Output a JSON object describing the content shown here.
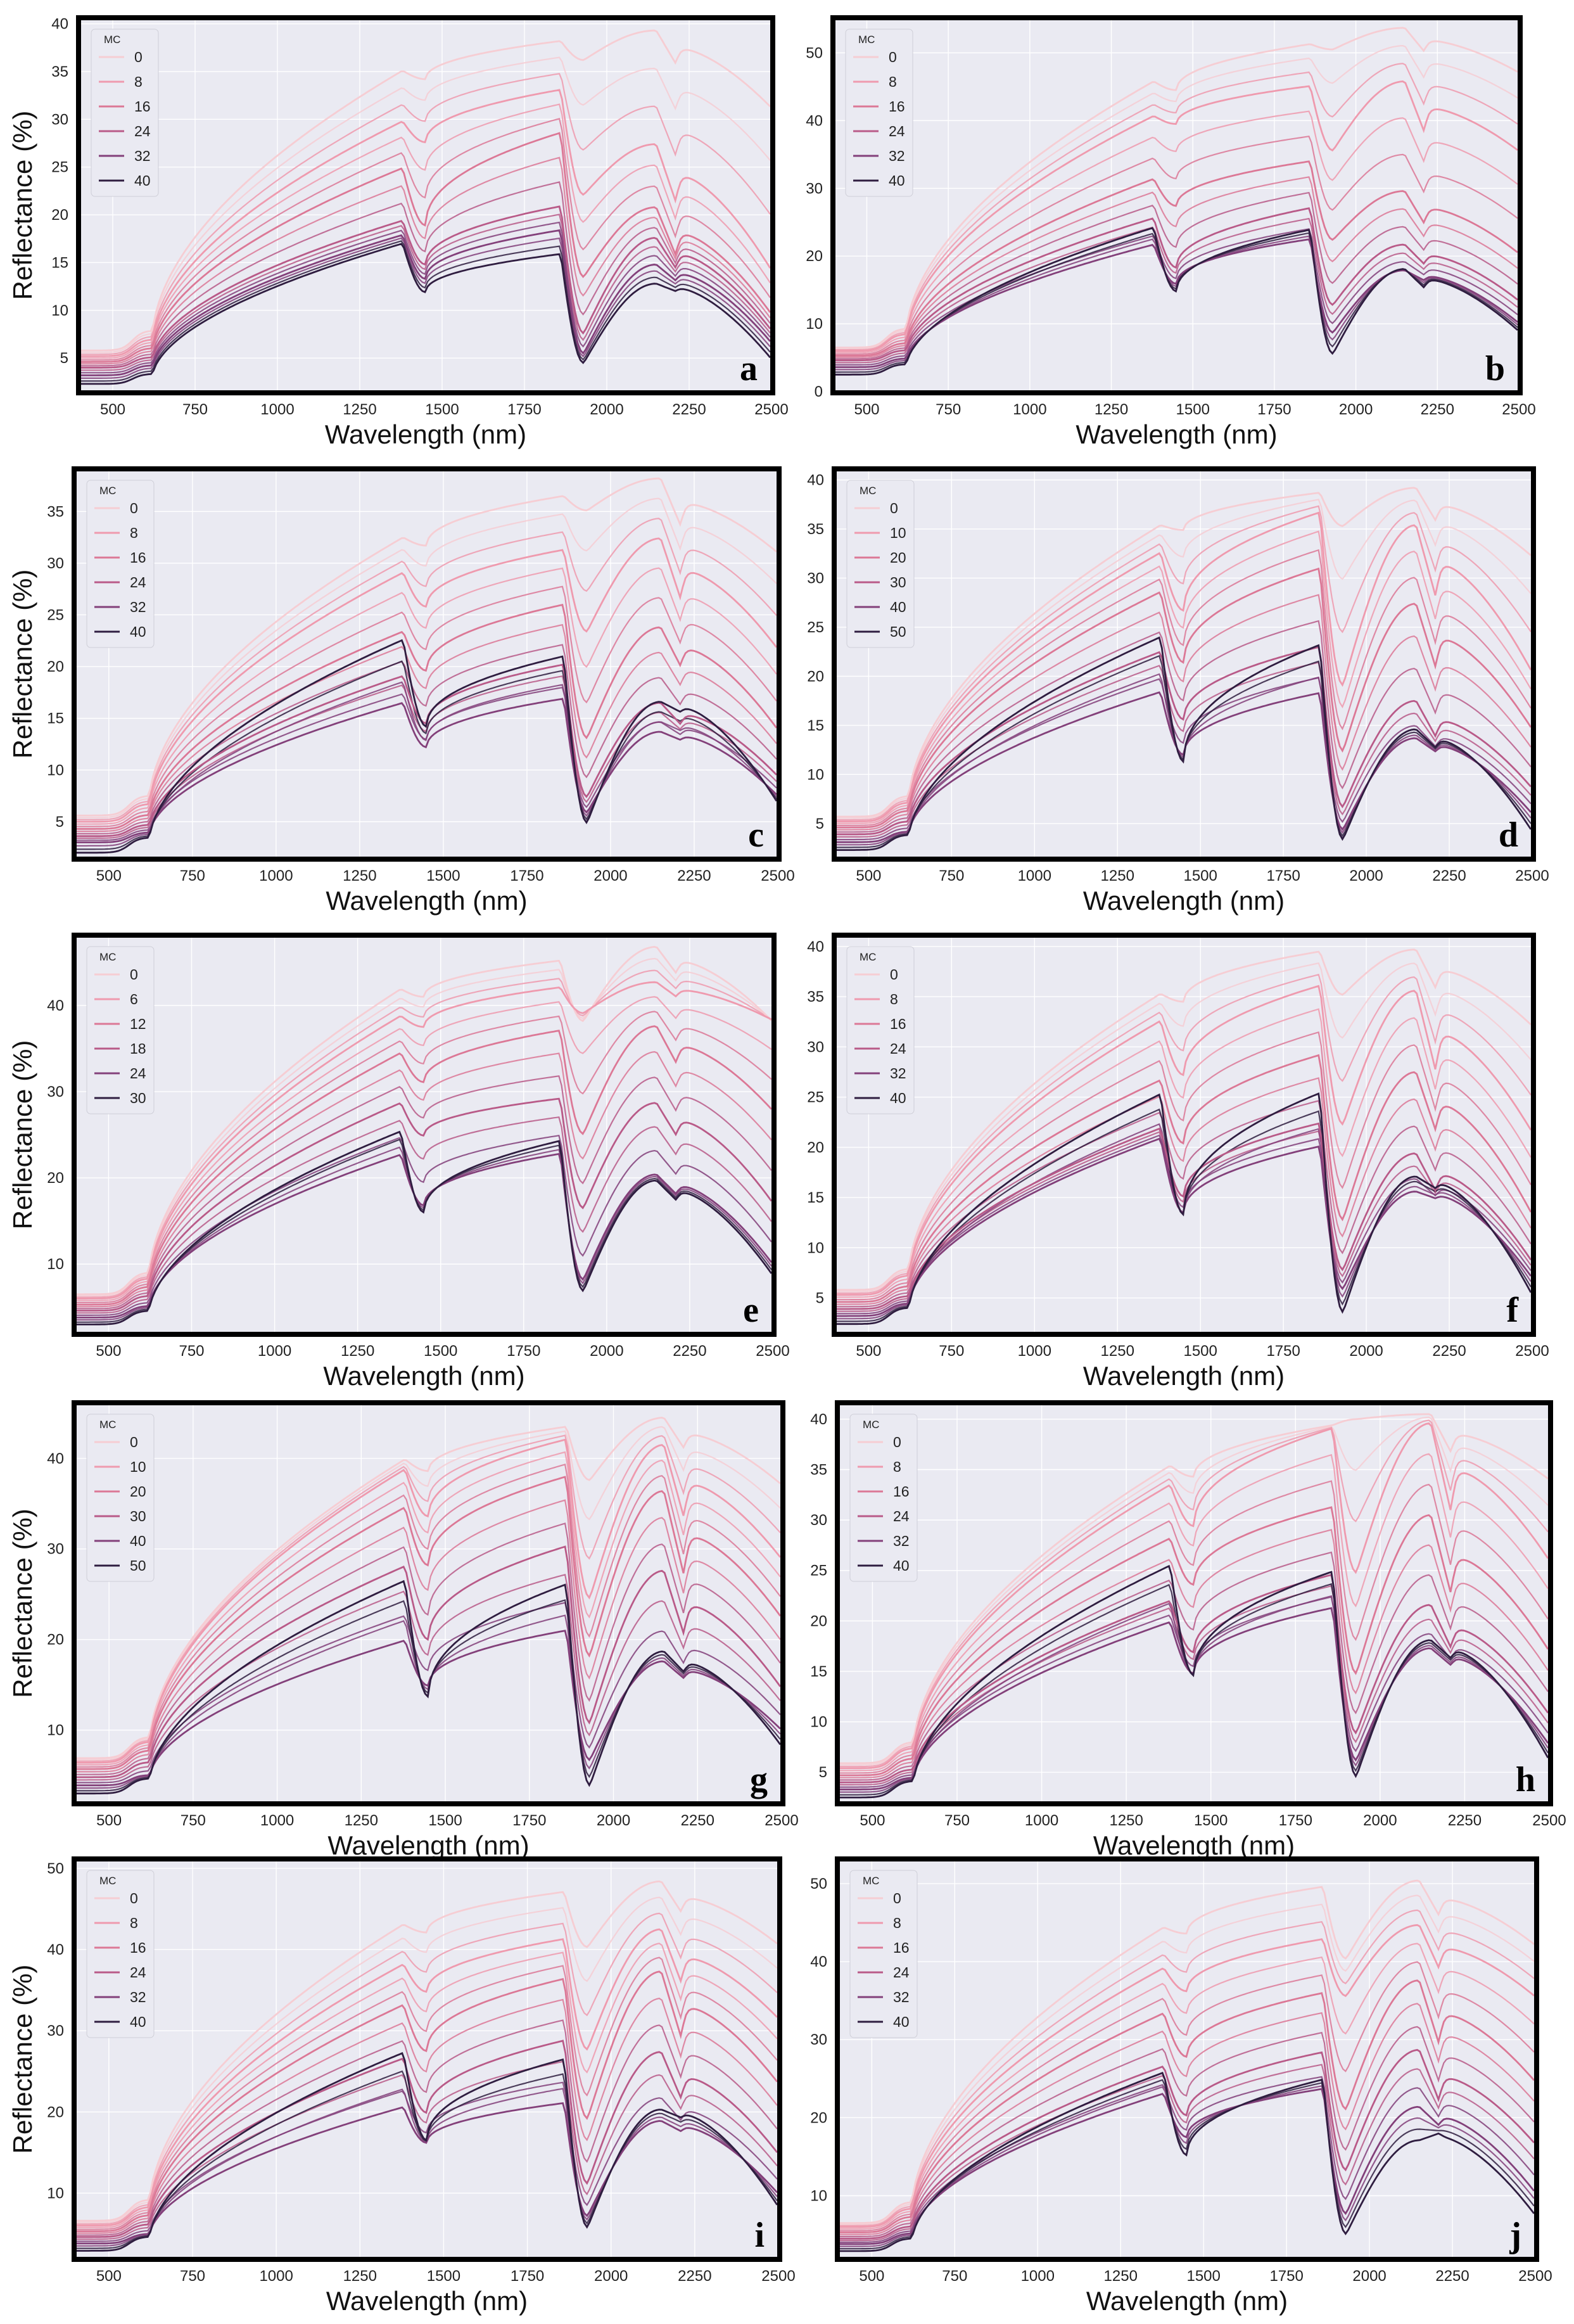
{
  "figure": {
    "x_axis_label": "Wavelength (nm)",
    "y_axis_label": "Reflectance (%)",
    "legend_title": "MC"
  },
  "chart_data": [
    {
      "type": "line",
      "panel": "a",
      "xlabel": "Wavelength (nm)",
      "ylabel": "Reflectance (%)",
      "xlim": [
        400,
        2500
      ],
      "ylim": [
        1.5,
        40.5
      ],
      "xticks": [
        500,
        750,
        1000,
        1250,
        1500,
        1750,
        2000,
        2250,
        2500
      ],
      "yticks": [
        5,
        10,
        15,
        20,
        25,
        30,
        35,
        40
      ],
      "legend_title": "MC",
      "legend_entries": [
        "0",
        "8",
        "16",
        "24",
        "32",
        "40"
      ],
      "series": [
        {
          "name": "0",
          "values": [
            5.8,
            35.1,
            34.2,
            38.2,
            36.2,
            39.3,
            35.8,
            31.2
          ]
        },
        {
          "name": "8",
          "values": [
            5.2,
            29.8,
            27.6,
            33.1,
            22.1,
            27.4,
            21.3,
            14.2
          ]
        },
        {
          "name": "16",
          "values": [
            4.6,
            24.9,
            18.9,
            28.6,
            13.5,
            20.8,
            15.7,
            9.6
          ]
        },
        {
          "name": "24",
          "values": [
            4.0,
            19.4,
            14.8,
            20.9,
            7.6,
            17.6,
            14.4,
            7.9
          ]
        },
        {
          "name": "32",
          "values": [
            3.2,
            17.9,
            13.3,
            18.4,
            5.5,
            14.8,
            13.1,
            6.6
          ]
        },
        {
          "name": "40",
          "values": [
            2.3,
            17.0,
            11.9,
            15.9,
            4.5,
            12.8,
            12.0,
            4.9
          ]
        }
      ]
    },
    {
      "type": "line",
      "panel": "b",
      "xlabel": "Wavelength (nm)",
      "ylabel": "Reflectance (%)",
      "xlim": [
        400,
        2500
      ],
      "ylim": [
        0,
        55
      ],
      "xticks": [
        500,
        750,
        1000,
        1250,
        1500,
        1750,
        2000,
        2250,
        2500
      ],
      "yticks": [
        0,
        10,
        20,
        30,
        40,
        50
      ],
      "legend_title": "MC",
      "legend_entries": [
        "0",
        "8",
        "16",
        "24",
        "32",
        "40"
      ],
      "series": [
        {
          "name": "0",
          "values": [
            6.5,
            45.8,
            44.5,
            51.3,
            50.5,
            53.7,
            50.2,
            47.1
          ]
        },
        {
          "name": "8",
          "values": [
            6.0,
            40.7,
            39.5,
            45.1,
            35.6,
            45.8,
            38.3,
            35.5
          ]
        },
        {
          "name": "16",
          "values": [
            5.3,
            31.4,
            27.4,
            34.0,
            22.4,
            29.6,
            24.8,
            20.4
          ]
        },
        {
          "name": "24",
          "values": [
            4.6,
            25.6,
            18.3,
            27.1,
            12.8,
            21.7,
            18.8,
            13.4
          ]
        },
        {
          "name": "32",
          "values": [
            3.6,
            21.7,
            15.9,
            22.5,
            8.7,
            17.9,
            16.4,
            10.1
          ]
        },
        {
          "name": "40",
          "values": [
            2.5,
            24.2,
            14.8,
            23.9,
            5.6,
            18.1,
            15.3,
            8.9
          ]
        }
      ]
    },
    {
      "type": "line",
      "panel": "c",
      "xlabel": "Wavelength (nm)",
      "ylabel": "Reflectance (%)",
      "xlim": [
        400,
        2500
      ],
      "ylim": [
        1.5,
        39
      ],
      "xticks": [
        500,
        750,
        1000,
        1250,
        1500,
        1750,
        2000,
        2250,
        2500
      ],
      "yticks": [
        5,
        10,
        15,
        20,
        25,
        30,
        35
      ],
      "legend_title": "MC",
      "legend_entries": [
        "0",
        "8",
        "16",
        "24",
        "32",
        "40"
      ],
      "series": [
        {
          "name": "0",
          "values": [
            5.6,
            32.5,
            31.7,
            36.5,
            35.1,
            38.2,
            33.6,
            31.0
          ]
        },
        {
          "name": "8",
          "values": [
            5.0,
            29.1,
            25.8,
            31.3,
            23.4,
            32.4,
            26.5,
            21.7
          ]
        },
        {
          "name": "16",
          "values": [
            4.3,
            23.4,
            19.6,
            26.0,
            13.1,
            23.8,
            20.0,
            13.9
          ]
        },
        {
          "name": "24",
          "values": [
            3.6,
            19.1,
            14.5,
            20.2,
            7.4,
            16.5,
            14.4,
            9.4
          ]
        },
        {
          "name": "32",
          "values": [
            3.0,
            16.5,
            12.2,
            16.9,
            5.9,
            13.7,
            12.9,
            7.5
          ]
        },
        {
          "name": "40",
          "values": [
            2.0,
            22.6,
            14.2,
            21.0,
            4.9,
            16.6,
            15.6,
            6.8
          ]
        }
      ]
    },
    {
      "type": "line",
      "panel": "d",
      "xlabel": "Wavelength (nm)",
      "ylabel": "Reflectance (%)",
      "xlim": [
        400,
        2500
      ],
      "ylim": [
        1.5,
        41
      ],
      "xticks": [
        500,
        750,
        1000,
        1250,
        1500,
        1750,
        2000,
        2250,
        2500
      ],
      "yticks": [
        5,
        10,
        15,
        20,
        25,
        30,
        35,
        40
      ],
      "legend_title": "MC",
      "legend_entries": [
        "0",
        "10",
        "20",
        "30",
        "40",
        "50"
      ],
      "series": [
        {
          "name": "0",
          "values": [
            5.7,
            35.4,
            34.9,
            38.7,
            35.3,
            39.2,
            35.8,
            32.2
          ]
        },
        {
          "name": "10",
          "values": [
            5.2,
            32.6,
            26.7,
            36.7,
            19.1,
            35.4,
            28.0,
            20.4
          ]
        },
        {
          "name": "20",
          "values": [
            4.6,
            28.6,
            21.4,
            31.0,
            12.4,
            27.4,
            20.8,
            14.6
          ]
        },
        {
          "name": "30",
          "values": [
            3.9,
            22.5,
            15.6,
            23.0,
            6.7,
            17.5,
            13.8,
            8.6
          ]
        },
        {
          "name": "40",
          "values": [
            3.1,
            18.4,
            12.0,
            18.3,
            4.4,
            13.7,
            12.3,
            6.0
          ]
        },
        {
          "name": "50",
          "values": [
            2.3,
            24.0,
            11.3,
            23.2,
            3.4,
            14.6,
            12.7,
            4.2
          ]
        }
      ]
    },
    {
      "type": "line",
      "panel": "e",
      "xlabel": "Wavelength (nm)",
      "ylabel": "Reflectance (%)",
      "xlim": [
        400,
        2500
      ],
      "ylim": [
        2,
        48
      ],
      "xticks": [
        500,
        750,
        1000,
        1250,
        1500,
        1750,
        2000,
        2250,
        2500
      ],
      "yticks": [
        10,
        20,
        30,
        40
      ],
      "legend_title": "MC",
      "legend_entries": [
        "0",
        "6",
        "12",
        "18",
        "24",
        "30"
      ],
      "series": [
        {
          "name": "0",
          "values": [
            6.5,
            41.9,
            41.0,
            45.2,
            38.2,
            46.8,
            43.7,
            38.1
          ]
        },
        {
          "name": "6",
          "values": [
            6.0,
            38.8,
            37.5,
            42.1,
            39.1,
            42.7,
            41.0,
            38.3
          ]
        },
        {
          "name": "12",
          "values": [
            5.3,
            34.5,
            31.1,
            37.1,
            25.1,
            37.6,
            33.3,
            27.8
          ]
        },
        {
          "name": "18",
          "values": [
            4.6,
            28.7,
            24.9,
            29.2,
            16.5,
            28.7,
            24.9,
            17.1
          ]
        },
        {
          "name": "24",
          "values": [
            3.8,
            22.7,
            16.8,
            22.8,
            8.2,
            20.4,
            18.1,
            10.0
          ]
        },
        {
          "name": "30",
          "values": [
            3.0,
            25.4,
            16.0,
            24.3,
            6.9,
            19.7,
            17.4,
            8.7
          ]
        }
      ]
    },
    {
      "type": "line",
      "panel": "f",
      "xlabel": "Wavelength (nm)",
      "ylabel": "Reflectance (%)",
      "xlim": [
        400,
        2500
      ],
      "ylim": [
        1.5,
        41
      ],
      "xticks": [
        500,
        750,
        1000,
        1250,
        1500,
        1750,
        2000,
        2250,
        2500
      ],
      "yticks": [
        5,
        10,
        15,
        20,
        25,
        30,
        35,
        40
      ],
      "legend_title": "MC",
      "legend_entries": [
        "0",
        "8",
        "16",
        "24",
        "32",
        "40"
      ],
      "series": [
        {
          "name": "0",
          "values": [
            5.8,
            35.3,
            34.5,
            39.5,
            35.2,
            39.7,
            35.8,
            32.1
          ]
        },
        {
          "name": "8",
          "values": [
            5.3,
            32.6,
            27.2,
            36.1,
            22.3,
            35.6,
            27.5,
            21.5
          ]
        },
        {
          "name": "16",
          "values": [
            4.6,
            26.7,
            20.4,
            29.2,
            12.8,
            27.5,
            21.6,
            13.3
          ]
        },
        {
          "name": "24",
          "values": [
            3.9,
            21.9,
            15.1,
            22.4,
            7.8,
            19.4,
            15.6,
            8.6
          ]
        },
        {
          "name": "32",
          "values": [
            3.2,
            20.9,
            13.5,
            20.1,
            5.9,
            15.6,
            14.9,
            7.0
          ]
        },
        {
          "name": "40",
          "values": [
            2.4,
            25.3,
            13.3,
            25.4,
            3.6,
            17.1,
            15.9,
            5.3
          ]
        }
      ]
    },
    {
      "type": "line",
      "panel": "g",
      "xlabel": "Wavelength (nm)",
      "ylabel": "Reflectance (%)",
      "xlim": [
        400,
        2500
      ],
      "ylim": [
        2,
        46
      ],
      "xticks": [
        500,
        750,
        1000,
        1250,
        1500,
        1750,
        2000,
        2250,
        2500
      ],
      "yticks": [
        10,
        20,
        30,
        40
      ],
      "legend_title": "MC",
      "legend_entries": [
        "0",
        "10",
        "20",
        "30",
        "40",
        "50"
      ],
      "series": [
        {
          "name": "0",
          "values": [
            6.9,
            39.9,
            38.6,
            43.5,
            37.6,
            44.5,
            41.1,
            37.1
          ]
        },
        {
          "name": "10",
          "values": [
            6.4,
            38.8,
            33.6,
            42.1,
            24.6,
            41.5,
            33.4,
            28.9
          ]
        },
        {
          "name": "20",
          "values": [
            5.7,
            34.6,
            28.2,
            38.0,
            18.2,
            36.4,
            27.0,
            22.4
          ]
        },
        {
          "name": "30",
          "values": [
            4.8,
            28.1,
            20.0,
            30.3,
            10.8,
            27.6,
            20.5,
            14.6
          ]
        },
        {
          "name": "40",
          "values": [
            3.9,
            19.9,
            14.9,
            21.0,
            6.7,
            17.6,
            15.7,
            10.0
          ]
        },
        {
          "name": "50",
          "values": [
            3.0,
            26.5,
            13.7,
            26.1,
            3.9,
            18.7,
            16.4,
            8.2
          ]
        }
      ]
    },
    {
      "type": "line",
      "panel": "h",
      "xlabel": "Wavelength (nm)",
      "ylabel": "Reflectance (%)",
      "xlim": [
        400,
        2500
      ],
      "ylim": [
        2,
        41.5
      ],
      "xticks": [
        500,
        750,
        1000,
        1250,
        1500,
        1750,
        2000,
        2250,
        2500
      ],
      "yticks": [
        5,
        10,
        15,
        20,
        25,
        30,
        35,
        40
      ],
      "legend_title": "MC",
      "legend_entries": [
        "0",
        "8",
        "16",
        "24",
        "32",
        "40"
      ],
      "series": [
        {
          "name": "0",
          "values": [
            5.9,
            35.4,
            34.3,
            39.4,
            40.0,
            40.5,
            36.7,
            34.0
          ]
        },
        {
          "name": "8",
          "values": [
            5.4,
            33.5,
            29.4,
            39.1,
            24.8,
            39.6,
            30.7,
            26.0
          ]
        },
        {
          "name": "16",
          "values": [
            4.7,
            28.2,
            23.6,
            31.3,
            14.8,
            30.5,
            22.6,
            17.0
          ]
        },
        {
          "name": "24",
          "values": [
            4.0,
            22.0,
            16.9,
            24.6,
            8.9,
            21.6,
            17.3,
            10.7
          ]
        },
        {
          "name": "32",
          "values": [
            3.3,
            19.9,
            14.8,
            21.3,
            6.2,
            17.3,
            15.6,
            7.7
          ]
        },
        {
          "name": "40",
          "values": [
            2.5,
            25.5,
            14.6,
            24.9,
            4.6,
            18.1,
            16.3,
            6.2
          ]
        }
      ]
    },
    {
      "type": "line",
      "panel": "i",
      "xlabel": "Wavelength (nm)",
      "ylabel": "Reflectance (%)",
      "xlim": [
        400,
        2500
      ],
      "ylim": [
        2,
        51
      ],
      "xticks": [
        500,
        750,
        1000,
        1250,
        1500,
        1750,
        2000,
        2250,
        2500
      ],
      "yticks": [
        10,
        20,
        30,
        40,
        50
      ],
      "legend_title": "MC",
      "legend_entries": [
        "0",
        "8",
        "16",
        "24",
        "32",
        "40"
      ],
      "series": [
        {
          "name": "0",
          "values": [
            6.6,
            43.1,
            42.1,
            47.1,
            40.3,
            48.4,
            44.6,
            40.6
          ]
        },
        {
          "name": "8",
          "values": [
            6.0,
            38.2,
            34.8,
            41.3,
            27.7,
            42.5,
            35.9,
            31.5
          ]
        },
        {
          "name": "16",
          "values": [
            5.3,
            33.2,
            27.5,
            36.4,
            19.2,
            37.3,
            29.1,
            23.5
          ]
        },
        {
          "name": "24",
          "values": [
            4.6,
            26.6,
            19.9,
            28.8,
            11.2,
            27.4,
            21.6,
            14.8
          ]
        },
        {
          "name": "32",
          "values": [
            3.8,
            20.6,
            16.2,
            21.1,
            7.2,
            18.9,
            17.6,
            9.9
          ]
        },
        {
          "name": "40",
          "values": [
            2.9,
            27.3,
            16.5,
            26.5,
            5.8,
            20.3,
            19.3,
            8.3
          ]
        }
      ]
    },
    {
      "type": "line",
      "panel": "j",
      "xlabel": "Wavelength (nm)",
      "ylabel": "Reflectance (%)",
      "xlim": [
        400,
        2500
      ],
      "ylim": [
        2,
        53
      ],
      "xticks": [
        500,
        750,
        1000,
        1250,
        1500,
        1750,
        2000,
        2250,
        2500
      ],
      "yticks": [
        10,
        20,
        30,
        40,
        50
      ],
      "legend_title": "MC",
      "legend_entries": [
        "0",
        "8",
        "16",
        "24",
        "32",
        "40"
      ],
      "series": [
        {
          "name": "0",
          "values": [
            6.5,
            44.4,
            43.6,
            49.6,
            40.4,
            50.4,
            45.9,
            42.1
          ]
        },
        {
          "name": "8",
          "values": [
            6.0,
            39.2,
            36.2,
            42.9,
            35.6,
            44.7,
            39.1,
            35.5
          ]
        },
        {
          "name": "16",
          "values": [
            5.3,
            33.4,
            27.8,
            36.0,
            21.1,
            37.6,
            29.4,
            24.6
          ]
        },
        {
          "name": "24",
          "values": [
            4.5,
            26.6,
            20.3,
            28.4,
            13.3,
            28.7,
            22.1,
            16.6
          ]
        },
        {
          "name": "32",
          "values": [
            3.8,
            23.1,
            17.5,
            23.7,
            7.7,
            21.4,
            19.0,
            10.4
          ]
        },
        {
          "name": "40",
          "values": [
            2.9,
            25.8,
            15.2,
            24.9,
            5.1,
            17.1,
            18.0,
            7.5
          ]
        }
      ]
    }
  ]
}
